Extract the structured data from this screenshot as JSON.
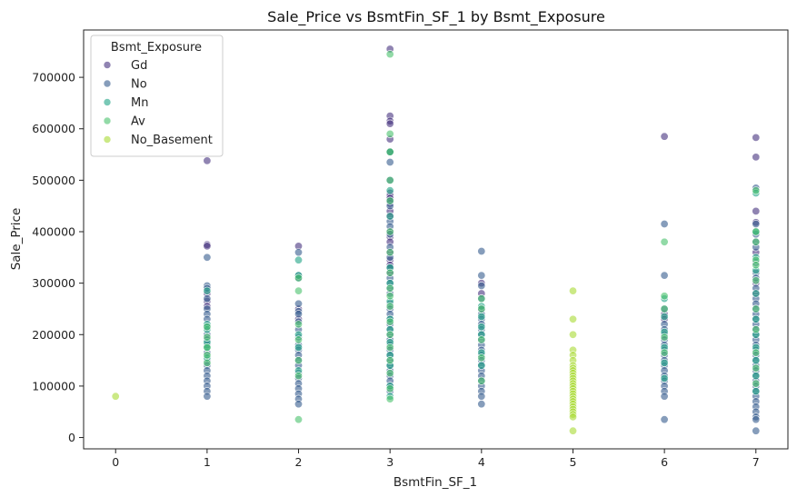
{
  "chart_data": {
    "type": "scatter",
    "title": "Sale_Price vs BsmtFin_SF_1 by Bsmt_Exposure",
    "xlabel": "BsmtFin_SF_1",
    "ylabel": "Sale_Price",
    "xlim": [
      -0.35,
      7.35
    ],
    "ylim": [
      -22000,
      792000
    ],
    "xticks": [
      "0",
      "1",
      "2",
      "3",
      "4",
      "5",
      "6",
      "7"
    ],
    "yticks": [
      "0",
      "100000",
      "200000",
      "300000",
      "400000",
      "500000",
      "600000",
      "700000"
    ],
    "grid": false,
    "legend": {
      "title": "Bsmt_Exposure",
      "position": "top-left"
    },
    "series": [
      {
        "name": "Gd",
        "color": "#46327e",
        "points": [
          [
            1,
            538000
          ],
          [
            1,
            375000
          ],
          [
            1,
            372000
          ],
          [
            1,
            280000
          ],
          [
            1,
            265000
          ],
          [
            1,
            255000
          ],
          [
            2,
            372000
          ],
          [
            2,
            250000
          ],
          [
            2,
            230000
          ],
          [
            3,
            755000
          ],
          [
            3,
            625000
          ],
          [
            3,
            615000
          ],
          [
            3,
            610000
          ],
          [
            3,
            580000
          ],
          [
            3,
            555000
          ],
          [
            3,
            475000
          ],
          [
            3,
            470000
          ],
          [
            3,
            465000
          ],
          [
            3,
            455000
          ],
          [
            3,
            440000
          ],
          [
            3,
            430000
          ],
          [
            3,
            400000
          ],
          [
            3,
            390000
          ],
          [
            3,
            380000
          ],
          [
            3,
            360000
          ],
          [
            3,
            345000
          ],
          [
            3,
            335000
          ],
          [
            3,
            320000
          ],
          [
            4,
            300000
          ],
          [
            4,
            280000
          ],
          [
            4,
            250000
          ],
          [
            6,
            585000
          ],
          [
            6,
            240000
          ],
          [
            6,
            230000
          ],
          [
            7,
            583000
          ],
          [
            7,
            545000
          ],
          [
            7,
            440000
          ],
          [
            7,
            418000
          ],
          [
            7,
            360000
          ],
          [
            7,
            300000
          ],
          [
            7,
            280000
          ]
        ]
      },
      {
        "name": "No",
        "color": "#365c8d",
        "points": [
          [
            1,
            350000
          ],
          [
            1,
            295000
          ],
          [
            1,
            290000
          ],
          [
            1,
            270000
          ],
          [
            1,
            250000
          ],
          [
            1,
            240000
          ],
          [
            1,
            230000
          ],
          [
            1,
            215000
          ],
          [
            1,
            200000
          ],
          [
            1,
            190000
          ],
          [
            1,
            180000
          ],
          [
            1,
            165000
          ],
          [
            1,
            150000
          ],
          [
            1,
            140000
          ],
          [
            1,
            130000
          ],
          [
            1,
            120000
          ],
          [
            1,
            110000
          ],
          [
            1,
            100000
          ],
          [
            1,
            90000
          ],
          [
            1,
            80000
          ],
          [
            2,
            360000
          ],
          [
            2,
            315000
          ],
          [
            2,
            310000
          ],
          [
            2,
            260000
          ],
          [
            2,
            245000
          ],
          [
            2,
            240000
          ],
          [
            2,
            225000
          ],
          [
            2,
            210000
          ],
          [
            2,
            195000
          ],
          [
            2,
            180000
          ],
          [
            2,
            170000
          ],
          [
            2,
            160000
          ],
          [
            2,
            150000
          ],
          [
            2,
            140000
          ],
          [
            2,
            125000
          ],
          [
            2,
            115000
          ],
          [
            2,
            105000
          ],
          [
            2,
            95000
          ],
          [
            2,
            85000
          ],
          [
            2,
            75000
          ],
          [
            2,
            65000
          ],
          [
            3,
            535000
          ],
          [
            3,
            500000
          ],
          [
            3,
            460000
          ],
          [
            3,
            450000
          ],
          [
            3,
            420000
          ],
          [
            3,
            410000
          ],
          [
            3,
            395000
          ],
          [
            3,
            370000
          ],
          [
            3,
            350000
          ],
          [
            3,
            330000
          ],
          [
            3,
            310000
          ],
          [
            3,
            300000
          ],
          [
            3,
            290000
          ],
          [
            3,
            280000
          ],
          [
            3,
            260000
          ],
          [
            3,
            250000
          ],
          [
            3,
            240000
          ],
          [
            3,
            230000
          ],
          [
            3,
            220000
          ],
          [
            3,
            210000
          ],
          [
            3,
            200000
          ],
          [
            3,
            190000
          ],
          [
            3,
            180000
          ],
          [
            3,
            170000
          ],
          [
            3,
            160000
          ],
          [
            3,
            150000
          ],
          [
            3,
            140000
          ],
          [
            3,
            130000
          ],
          [
            3,
            120000
          ],
          [
            3,
            110000
          ],
          [
            3,
            100000
          ],
          [
            3,
            90000
          ],
          [
            4,
            362000
          ],
          [
            4,
            315000
          ],
          [
            4,
            295000
          ],
          [
            4,
            270000
          ],
          [
            4,
            240000
          ],
          [
            4,
            230000
          ],
          [
            4,
            220000
          ],
          [
            4,
            210000
          ],
          [
            4,
            200000
          ],
          [
            4,
            190000
          ],
          [
            4,
            180000
          ],
          [
            4,
            170000
          ],
          [
            4,
            160000
          ],
          [
            4,
            150000
          ],
          [
            4,
            140000
          ],
          [
            4,
            130000
          ],
          [
            4,
            120000
          ],
          [
            4,
            110000
          ],
          [
            4,
            100000
          ],
          [
            4,
            90000
          ],
          [
            4,
            80000
          ],
          [
            4,
            65000
          ],
          [
            6,
            415000
          ],
          [
            6,
            315000
          ],
          [
            6,
            250000
          ],
          [
            6,
            220000
          ],
          [
            6,
            210000
          ],
          [
            6,
            200000
          ],
          [
            6,
            190000
          ],
          [
            6,
            180000
          ],
          [
            6,
            170000
          ],
          [
            6,
            160000
          ],
          [
            6,
            150000
          ],
          [
            6,
            140000
          ],
          [
            6,
            130000
          ],
          [
            6,
            120000
          ],
          [
            6,
            110000
          ],
          [
            6,
            100000
          ],
          [
            6,
            90000
          ],
          [
            6,
            80000
          ],
          [
            6,
            35000
          ],
          [
            7,
            485000
          ],
          [
            7,
            415000
          ],
          [
            7,
            395000
          ],
          [
            7,
            380000
          ],
          [
            7,
            370000
          ],
          [
            7,
            340000
          ],
          [
            7,
            320000
          ],
          [
            7,
            310000
          ],
          [
            7,
            290000
          ],
          [
            7,
            270000
          ],
          [
            7,
            260000
          ],
          [
            7,
            250000
          ],
          [
            7,
            240000
          ],
          [
            7,
            230000
          ],
          [
            7,
            220000
          ],
          [
            7,
            210000
          ],
          [
            7,
            200000
          ],
          [
            7,
            190000
          ],
          [
            7,
            180000
          ],
          [
            7,
            170000
          ],
          [
            7,
            160000
          ],
          [
            7,
            150000
          ],
          [
            7,
            140000
          ],
          [
            7,
            130000
          ],
          [
            7,
            120000
          ],
          [
            7,
            110000
          ],
          [
            7,
            100000
          ],
          [
            7,
            90000
          ],
          [
            7,
            80000
          ],
          [
            7,
            70000
          ],
          [
            7,
            60000
          ],
          [
            7,
            50000
          ],
          [
            7,
            40000
          ],
          [
            7,
            35000
          ],
          [
            7,
            13000
          ]
        ]
      },
      {
        "name": "Mn",
        "color": "#20a386",
        "points": [
          [
            1,
            285000
          ],
          [
            1,
            220000
          ],
          [
            1,
            210000
          ],
          [
            1,
            185000
          ],
          [
            1,
            175000
          ],
          [
            1,
            155000
          ],
          [
            2,
            345000
          ],
          [
            2,
            315000
          ],
          [
            2,
            200000
          ],
          [
            2,
            175000
          ],
          [
            2,
            130000
          ],
          [
            3,
            555000
          ],
          [
            3,
            480000
          ],
          [
            3,
            430000
          ],
          [
            3,
            330000
          ],
          [
            3,
            300000
          ],
          [
            3,
            265000
          ],
          [
            3,
            230000
          ],
          [
            3,
            210000
          ],
          [
            3,
            185000
          ],
          [
            3,
            160000
          ],
          [
            3,
            140000
          ],
          [
            3,
            100000
          ],
          [
            3,
            80000
          ],
          [
            4,
            255000
          ],
          [
            4,
            235000
          ],
          [
            4,
            215000
          ],
          [
            4,
            200000
          ],
          [
            4,
            165000
          ],
          [
            4,
            140000
          ],
          [
            6,
            270000
          ],
          [
            6,
            235000
          ],
          [
            6,
            205000
          ],
          [
            6,
            175000
          ],
          [
            6,
            145000
          ],
          [
            6,
            115000
          ],
          [
            7,
            475000
          ],
          [
            7,
            400000
          ],
          [
            7,
            350000
          ],
          [
            7,
            325000
          ],
          [
            7,
            280000
          ],
          [
            7,
            230000
          ],
          [
            7,
            200000
          ],
          [
            7,
            175000
          ],
          [
            7,
            150000
          ],
          [
            7,
            120000
          ],
          [
            7,
            90000
          ]
        ]
      },
      {
        "name": "Av",
        "color": "#4ac16d",
        "points": [
          [
            1,
            215000
          ],
          [
            1,
            195000
          ],
          [
            1,
            175000
          ],
          [
            1,
            160000
          ],
          [
            1,
            145000
          ],
          [
            2,
            310000
          ],
          [
            2,
            285000
          ],
          [
            2,
            220000
          ],
          [
            2,
            190000
          ],
          [
            2,
            150000
          ],
          [
            2,
            120000
          ],
          [
            2,
            35000
          ],
          [
            3,
            745000
          ],
          [
            3,
            590000
          ],
          [
            3,
            555000
          ],
          [
            3,
            500000
          ],
          [
            3,
            460000
          ],
          [
            3,
            400000
          ],
          [
            3,
            360000
          ],
          [
            3,
            320000
          ],
          [
            3,
            290000
          ],
          [
            3,
            275000
          ],
          [
            3,
            255000
          ],
          [
            3,
            225000
          ],
          [
            3,
            200000
          ],
          [
            3,
            175000
          ],
          [
            3,
            150000
          ],
          [
            3,
            125000
          ],
          [
            3,
            95000
          ],
          [
            3,
            75000
          ],
          [
            4,
            270000
          ],
          [
            4,
            250000
          ],
          [
            4,
            190000
          ],
          [
            4,
            155000
          ],
          [
            4,
            110000
          ],
          [
            6,
            380000
          ],
          [
            6,
            275000
          ],
          [
            6,
            250000
          ],
          [
            6,
            195000
          ],
          [
            6,
            165000
          ],
          [
            7,
            480000
          ],
          [
            7,
            400000
          ],
          [
            7,
            380000
          ],
          [
            7,
            345000
          ],
          [
            7,
            335000
          ],
          [
            7,
            305000
          ],
          [
            7,
            250000
          ],
          [
            7,
            210000
          ],
          [
            7,
            165000
          ],
          [
            7,
            135000
          ],
          [
            7,
            105000
          ]
        ]
      },
      {
        "name": "No_Basement",
        "color": "#a8db34",
        "points": [
          [
            0,
            80000
          ],
          [
            5,
            285000
          ],
          [
            5,
            230000
          ],
          [
            5,
            200000
          ],
          [
            5,
            170000
          ],
          [
            5,
            160000
          ],
          [
            5,
            150000
          ],
          [
            5,
            140000
          ],
          [
            5,
            135000
          ],
          [
            5,
            130000
          ],
          [
            5,
            125000
          ],
          [
            5,
            120000
          ],
          [
            5,
            115000
          ],
          [
            5,
            110000
          ],
          [
            5,
            105000
          ],
          [
            5,
            100000
          ],
          [
            5,
            95000
          ],
          [
            5,
            90000
          ],
          [
            5,
            85000
          ],
          [
            5,
            80000
          ],
          [
            5,
            75000
          ],
          [
            5,
            70000
          ],
          [
            5,
            65000
          ],
          [
            5,
            60000
          ],
          [
            5,
            55000
          ],
          [
            5,
            50000
          ],
          [
            5,
            45000
          ],
          [
            5,
            40000
          ],
          [
            5,
            13000
          ]
        ]
      }
    ]
  }
}
